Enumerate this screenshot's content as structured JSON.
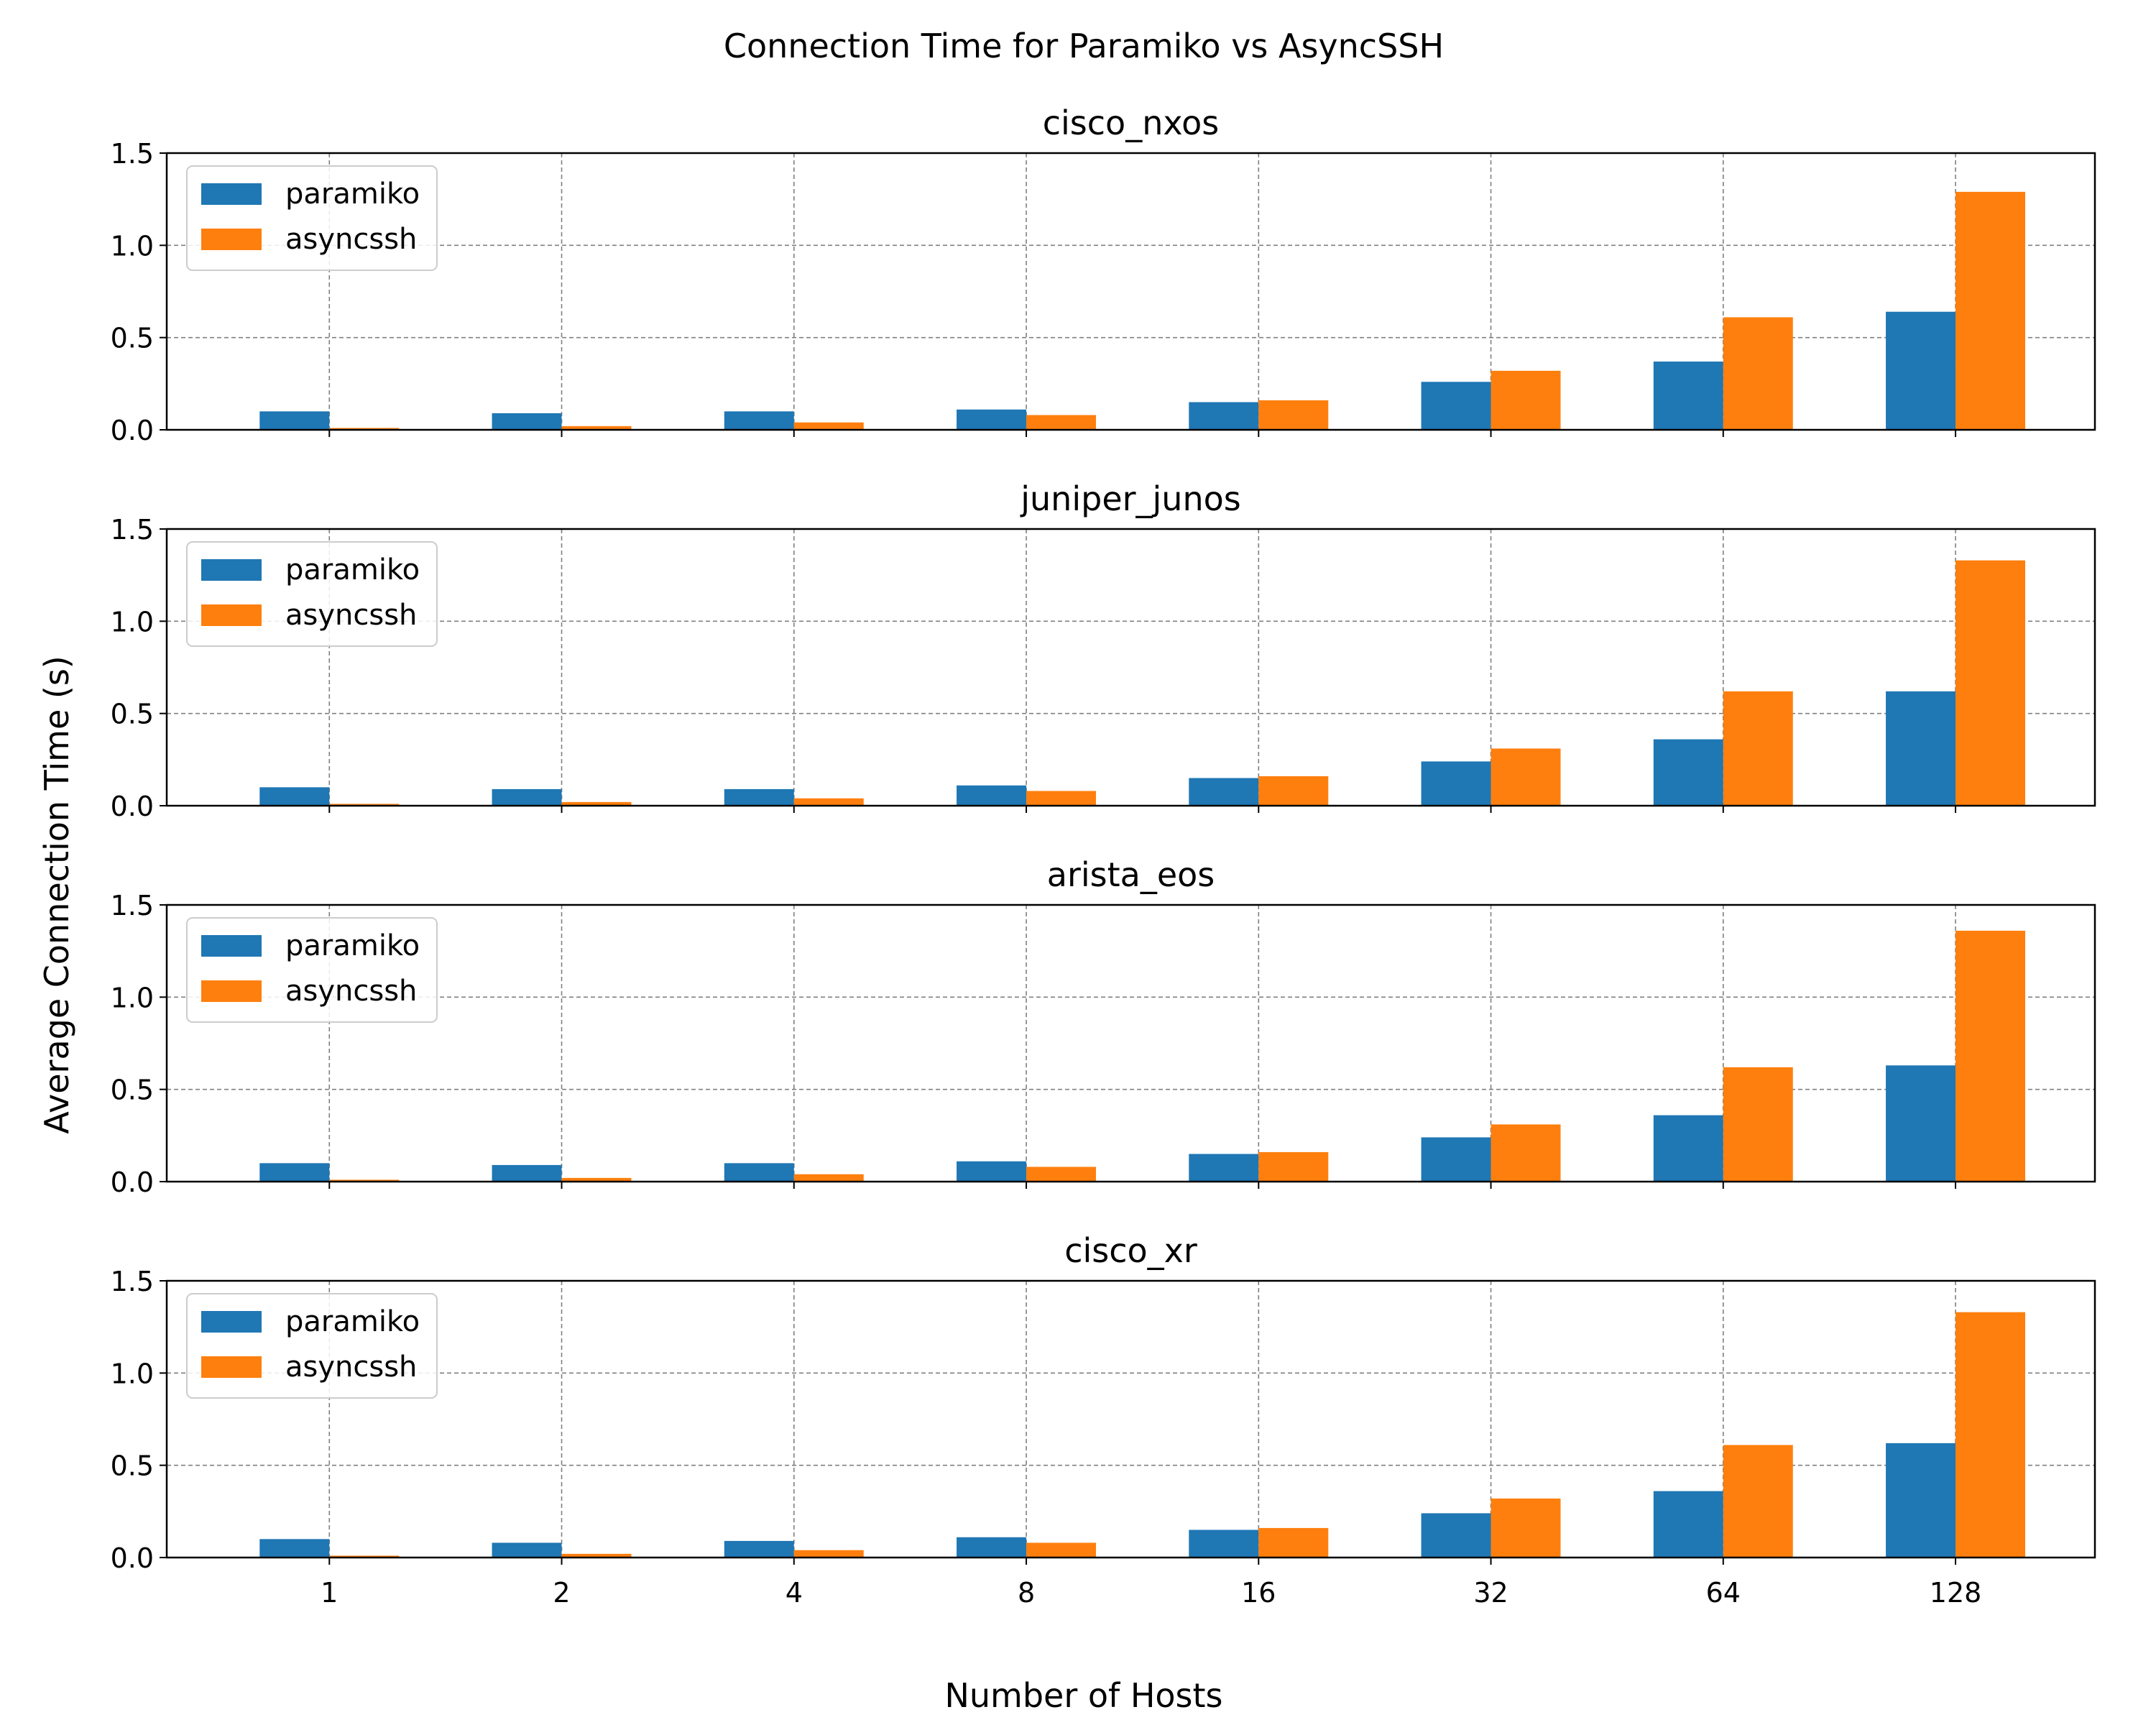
{
  "figure": {
    "suptitle": "Connection Time for Paramiko vs AsyncSSH",
    "xlabel": "Number of Hosts",
    "ylabel": "Average Connection Time (s)"
  },
  "colors": {
    "paramiko": "#1f77b4",
    "asyncssh": "#ff7f0e",
    "grid": "#808080",
    "axis": "#000000"
  },
  "chart_data": [
    {
      "type": "bar",
      "title": "cisco_nxos",
      "categories": [
        "1",
        "2",
        "4",
        "8",
        "16",
        "32",
        "64",
        "128"
      ],
      "ylim": [
        0,
        1.5
      ],
      "yticks": [
        "0.0",
        "0.5",
        "1.0",
        "1.5"
      ],
      "grid": true,
      "legend_position": "top-left",
      "series": [
        {
          "name": "paramiko",
          "values": [
            0.1,
            0.09,
            0.1,
            0.11,
            0.15,
            0.26,
            0.37,
            0.64
          ]
        },
        {
          "name": "asyncssh",
          "values": [
            0.01,
            0.02,
            0.04,
            0.08,
            0.16,
            0.32,
            0.61,
            1.29
          ]
        }
      ]
    },
    {
      "type": "bar",
      "title": "juniper_junos",
      "categories": [
        "1",
        "2",
        "4",
        "8",
        "16",
        "32",
        "64",
        "128"
      ],
      "ylim": [
        0,
        1.5
      ],
      "yticks": [
        "0.0",
        "0.5",
        "1.0",
        "1.5"
      ],
      "grid": true,
      "legend_position": "top-left",
      "series": [
        {
          "name": "paramiko",
          "values": [
            0.1,
            0.09,
            0.09,
            0.11,
            0.15,
            0.24,
            0.36,
            0.62
          ]
        },
        {
          "name": "asyncssh",
          "values": [
            0.01,
            0.02,
            0.04,
            0.08,
            0.16,
            0.31,
            0.62,
            1.33
          ]
        }
      ]
    },
    {
      "type": "bar",
      "title": "arista_eos",
      "categories": [
        "1",
        "2",
        "4",
        "8",
        "16",
        "32",
        "64",
        "128"
      ],
      "ylim": [
        0,
        1.5
      ],
      "yticks": [
        "0.0",
        "0.5",
        "1.0",
        "1.5"
      ],
      "grid": true,
      "legend_position": "top-left",
      "series": [
        {
          "name": "paramiko",
          "values": [
            0.1,
            0.09,
            0.1,
            0.11,
            0.15,
            0.24,
            0.36,
            0.63
          ]
        },
        {
          "name": "asyncssh",
          "values": [
            0.01,
            0.02,
            0.04,
            0.08,
            0.16,
            0.31,
            0.62,
            1.36
          ]
        }
      ]
    },
    {
      "type": "bar",
      "title": "cisco_xr",
      "categories": [
        "1",
        "2",
        "4",
        "8",
        "16",
        "32",
        "64",
        "128"
      ],
      "ylim": [
        0,
        1.5
      ],
      "yticks": [
        "0.0",
        "0.5",
        "1.0",
        "1.5"
      ],
      "grid": true,
      "legend_position": "top-left",
      "series": [
        {
          "name": "paramiko",
          "values": [
            0.1,
            0.08,
            0.09,
            0.11,
            0.15,
            0.24,
            0.36,
            0.62
          ]
        },
        {
          "name": "asyncssh",
          "values": [
            0.01,
            0.02,
            0.04,
            0.08,
            0.16,
            0.32,
            0.61,
            1.33
          ]
        }
      ]
    }
  ]
}
